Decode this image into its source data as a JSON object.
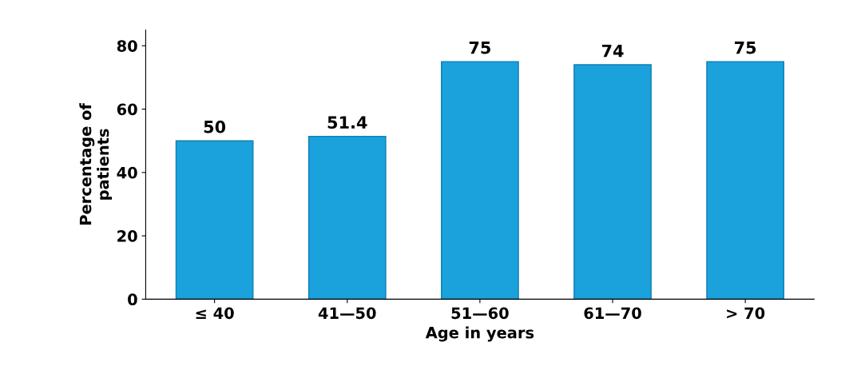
{
  "chart_data": {
    "type": "bar",
    "xlabel": "Age in years",
    "ylabel": "Percentage of\npatients",
    "categories": [
      "≤ 40",
      "41—50",
      "51—60",
      "61—70",
      "> 70"
    ],
    "values": [
      50,
      51.4,
      75,
      74,
      75
    ],
    "color": "#1ba1dc",
    "ylim": [
      0,
      85
    ],
    "yticks": [
      0,
      20,
      40,
      60,
      80
    ],
    "data_labels": true,
    "grid": false
  }
}
